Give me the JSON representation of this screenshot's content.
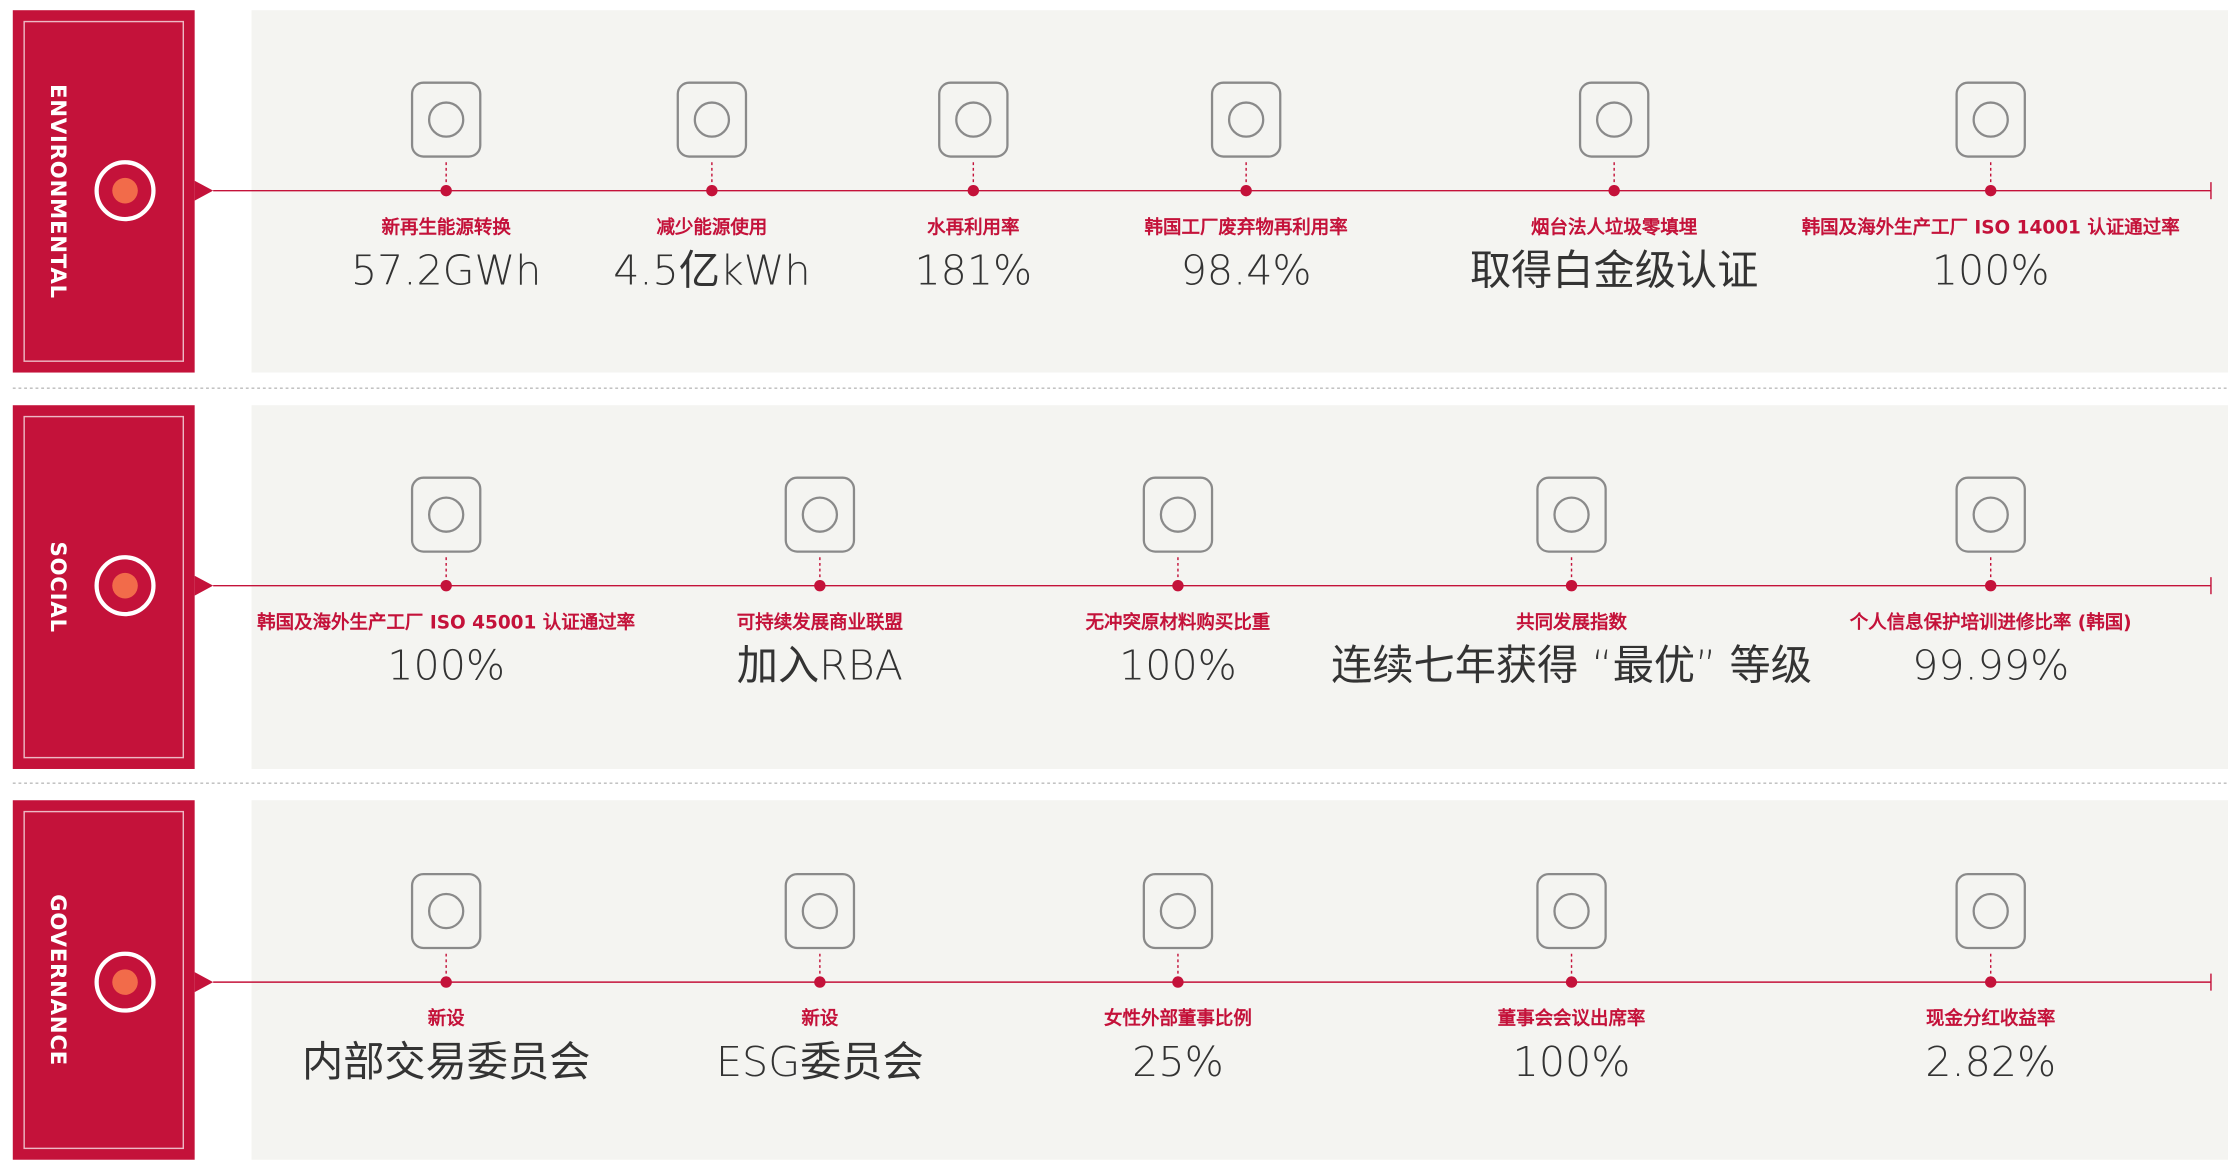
{
  "sections": [
    {
      "label": "ENVIRONMENTAL",
      "items": [
        {
          "caption": "新再生能源转换",
          "value": "57.2GWh"
        },
        {
          "caption": "减少能源使用",
          "value": "4.5亿kWh"
        },
        {
          "caption": "水再利用率",
          "value": "181%"
        },
        {
          "caption": "韩国工厂废弃物再利用率",
          "value": "98.4%"
        },
        {
          "caption": "烟台法人垃圾零填埋",
          "value": "取得白金级认证"
        },
        {
          "caption": "韩国及海外生产工厂 ISO 14001 认证通过率",
          "value": "100%"
        }
      ]
    },
    {
      "label": "SOCIAL",
      "items": [
        {
          "caption": "韩国及海外生产工厂 ISO 45001 认证通过率",
          "value": "100%"
        },
        {
          "caption": "可持续发展商业联盟",
          "value": "加入RBA"
        },
        {
          "caption": "无冲突原材料购买比重",
          "value": "100%"
        },
        {
          "caption": "共同发展指数",
          "value": "连续七年获得 “最优” 等级"
        },
        {
          "caption": "个人信息保护培训进修比率 (韩国)",
          "value": "99.99%"
        }
      ]
    },
    {
      "label": "GOVERNANCE",
      "items": [
        {
          "caption": "新设",
          "value": "内部交易委员会"
        },
        {
          "caption": "新设",
          "value": "ESG委员会"
        },
        {
          "caption": "女性外部董事比例",
          "value": "25%"
        },
        {
          "caption": "董事会会议出席率",
          "value": "100%"
        },
        {
          "caption": "现金分红收益率",
          "value": "2.82%"
        }
      ]
    }
  ]
}
